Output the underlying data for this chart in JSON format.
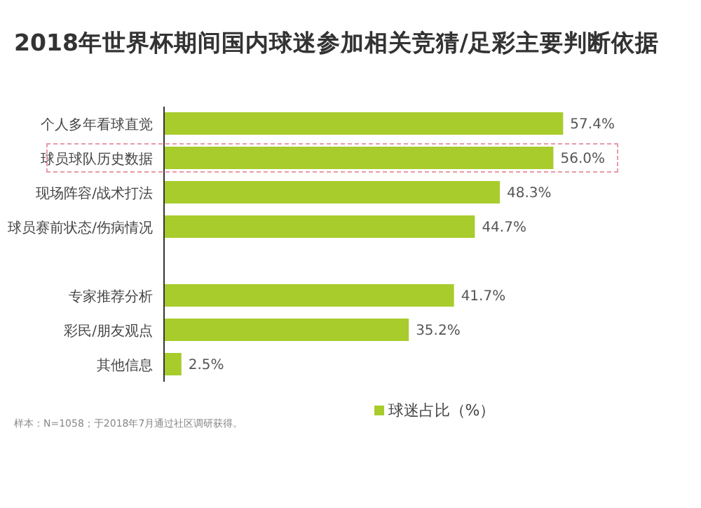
{
  "chart_data": {
    "type": "bar",
    "orientation": "horizontal",
    "title": "2018年世界杯期间国内球迷参加相关竞猜/足彩主要判断依据",
    "categories": [
      "个人多年看球直觉",
      "球员球队历史数据",
      "现场阵容/战术打法",
      "球员赛前状态/伤病情况",
      null,
      "专家推荐分析",
      "彩民/朋友观点",
      "其他信息"
    ],
    "series": [
      {
        "name": "球迷占比（%）",
        "color": "#a8cc2c",
        "values": [
          57.4,
          56.0,
          48.3,
          44.7,
          null,
          41.7,
          35.2,
          2.5
        ],
        "value_labels": [
          "57.4%",
          "56.0%",
          "48.3%",
          "44.7%",
          null,
          "41.7%",
          "35.2%",
          "2.5%"
        ]
      }
    ],
    "legend": "bottom",
    "annotations": [
      "样本：N=1058；于2018年7月通过社区调研获得。"
    ]
  }
}
